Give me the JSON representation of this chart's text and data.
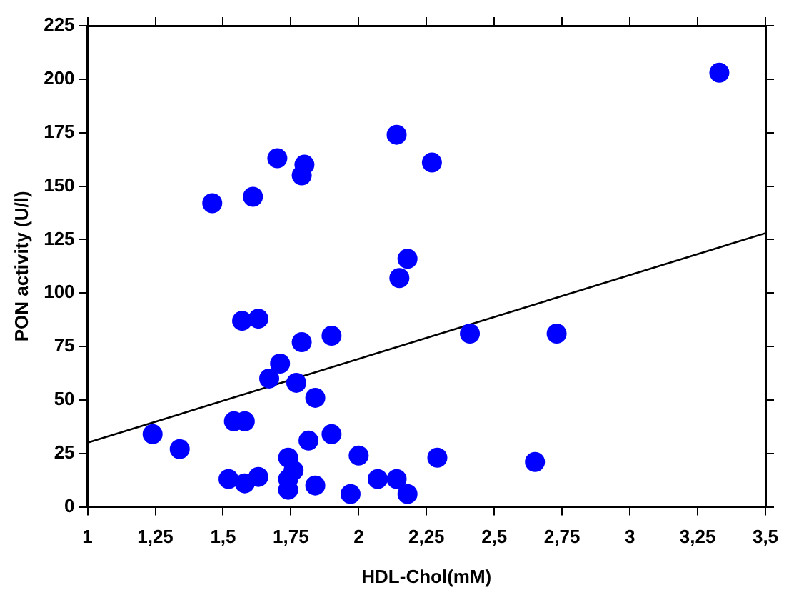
{
  "chart_data": {
    "type": "scatter",
    "xlabel": "HDL-Chol(mM)",
    "ylabel": "PON activity (U/l)",
    "xlim": [
      1,
      3.5
    ],
    "ylim": [
      0,
      225
    ],
    "xticks": [
      1,
      {
        "value": 1.25,
        "label": "1,25"
      },
      {
        "value": 1.5,
        "label": "1,5"
      },
      {
        "value": 1.75,
        "label": "1,75"
      },
      2,
      {
        "value": 2.25,
        "label": "2,25"
      },
      {
        "value": 2.5,
        "label": "2,5"
      },
      {
        "value": 2.75,
        "label": "2,75"
      },
      3,
      {
        "value": 3.25,
        "label": "3,25"
      },
      {
        "value": 3.5,
        "label": "3,5"
      }
    ],
    "yticks": [
      0,
      25,
      50,
      75,
      100,
      125,
      150,
      175,
      200,
      225
    ],
    "grid": false,
    "legend": false,
    "marker": "circle",
    "series": [
      {
        "type": "scatter",
        "color": "#0000ff",
        "x": [
          1.24,
          1.34,
          1.46,
          1.61,
          1.7,
          1.8,
          1.79,
          1.57,
          1.63,
          1.71,
          1.67,
          1.79,
          1.9,
          1.77,
          1.84,
          1.54,
          1.58,
          1.815,
          1.9,
          1.74,
          1.52,
          1.58,
          1.63,
          1.76,
          1.74,
          1.74,
          1.84,
          1.97,
          2.0,
          2.07,
          2.14,
          2.18,
          2.29,
          2.41,
          2.73,
          2.65,
          2.14,
          2.27,
          2.18,
          2.15,
          3.33
        ],
        "values": [
          34,
          27,
          142,
          145,
          163,
          160,
          155,
          87,
          88,
          67,
          60,
          77,
          80,
          58,
          51,
          40,
          40,
          31,
          34,
          23,
          13,
          11,
          14,
          17,
          13,
          8,
          10,
          6,
          24,
          13,
          13,
          6,
          23,
          81,
          81,
          21,
          174,
          161,
          116,
          107,
          203
        ]
      },
      {
        "type": "line",
        "color": "#000000",
        "marker": "none",
        "x": [
          1,
          3.5
        ],
        "values": [
          30,
          128
        ]
      }
    ]
  }
}
